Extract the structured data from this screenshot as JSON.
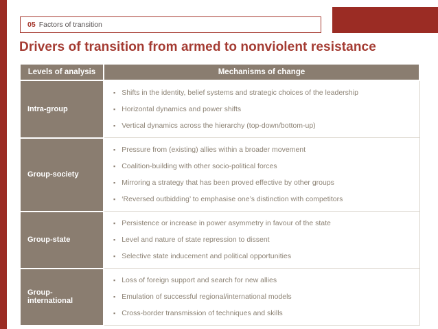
{
  "slide": {
    "number": "05",
    "header_label": "Factors of transition",
    "title": "Drivers of transition from armed to nonviolent resistance"
  },
  "table": {
    "headers": [
      "Levels of analysis",
      "Mechanisms of change"
    ],
    "rows": [
      {
        "level": "Intra-group",
        "mechanisms": [
          "Shifts in the identity, belief systems and strategic choices of the leadership",
          "Horizontal dynamics and power shifts",
          "Vertical dynamics across the hierarchy (top-down/bottom-up)"
        ]
      },
      {
        "level": "Group-society",
        "mechanisms": [
          "Pressure from (existing) allies within a broader movement",
          "Coalition-building with other socio-political forces",
          "Mirroring a strategy that has been proved effective by other groups",
          "‘Reversed outbidding’ to emphasise one’s distinction with competitors"
        ]
      },
      {
        "level": "Group-state",
        "mechanisms": [
          "Persistence or increase in power asymmetry in favour of the state",
          "Level and nature of state repression to dissent",
          "Selective state inducement and political opportunities"
        ]
      },
      {
        "level": "Group-international",
        "mechanisms": [
          "Loss of foreign support and search for new allies",
          "Emulation of successful regional/international models",
          "Cross-border transmission of techniques and skills"
        ]
      }
    ]
  },
  "colors": {
    "accent_red": "#9B2C24",
    "title_red": "#A43B32",
    "taupe": "#8A7D70",
    "body_text": "#8C8274"
  }
}
